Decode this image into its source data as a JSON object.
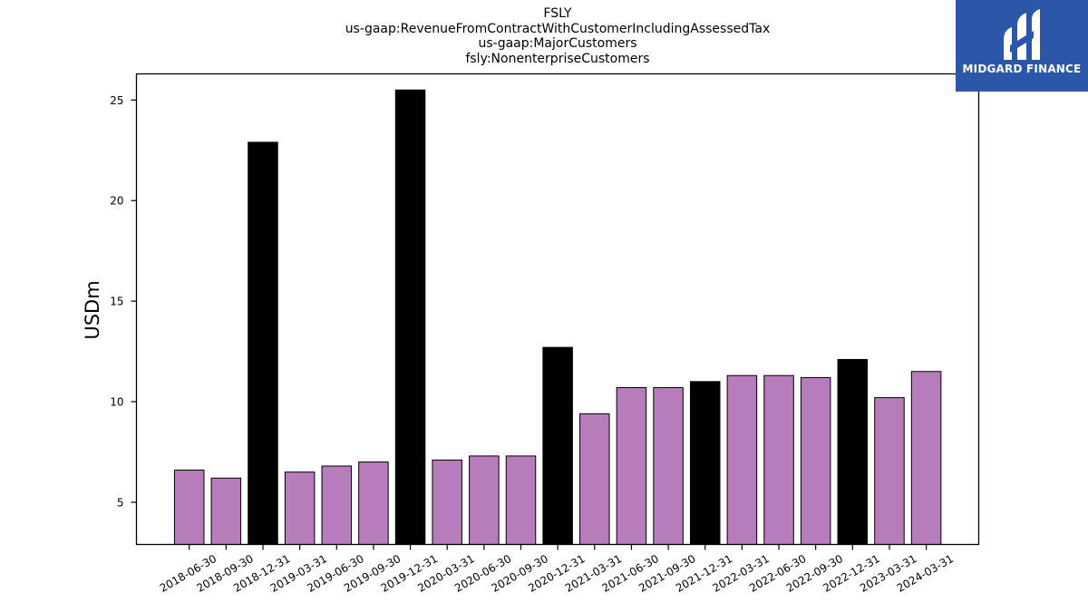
{
  "chart_data": {
    "type": "bar",
    "title_lines": [
      "FSLY",
      "us-gaap:RevenueFromContractWithCustomerIncludingAssessedTax",
      "us-gaap:MajorCustomers",
      "fsly:NonenterpriseCustomers"
    ],
    "ylabel": "USDm",
    "xlabel": "",
    "ylim": [
      2.9,
      26.3
    ],
    "yticks": [
      5,
      10,
      15,
      20,
      25
    ],
    "grid": false,
    "categories": [
      "2018-06-30",
      "2018-09-30",
      "2018-12-31",
      "2019-03-31",
      "2019-06-30",
      "2019-09-30",
      "2019-12-31",
      "2020-03-31",
      "2020-06-30",
      "2020-09-30",
      "2020-12-31",
      "2021-03-31",
      "2021-06-30",
      "2021-09-30",
      "2021-12-31",
      "2022-03-31",
      "2022-06-30",
      "2022-09-30",
      "2022-12-31",
      "2023-03-31",
      "2024-03-31"
    ],
    "values": [
      6.6,
      6.2,
      22.9,
      6.5,
      6.8,
      7.0,
      25.5,
      7.1,
      7.3,
      7.3,
      12.7,
      9.4,
      10.7,
      10.7,
      11.0,
      11.3,
      11.3,
      11.2,
      12.1,
      10.2,
      11.5
    ],
    "bar_colors": [
      "#b77cbb",
      "#b77cbb",
      "#000000",
      "#b77cbb",
      "#b77cbb",
      "#b77cbb",
      "#000000",
      "#b77cbb",
      "#b77cbb",
      "#b77cbb",
      "#000000",
      "#b77cbb",
      "#b77cbb",
      "#b77cbb",
      "#000000",
      "#b77cbb",
      "#b77cbb",
      "#b77cbb",
      "#000000",
      "#b77cbb",
      "#b77cbb"
    ]
  },
  "logo": {
    "text": "MIDGARD FINANCE",
    "bg_color": "#2c57a8"
  }
}
